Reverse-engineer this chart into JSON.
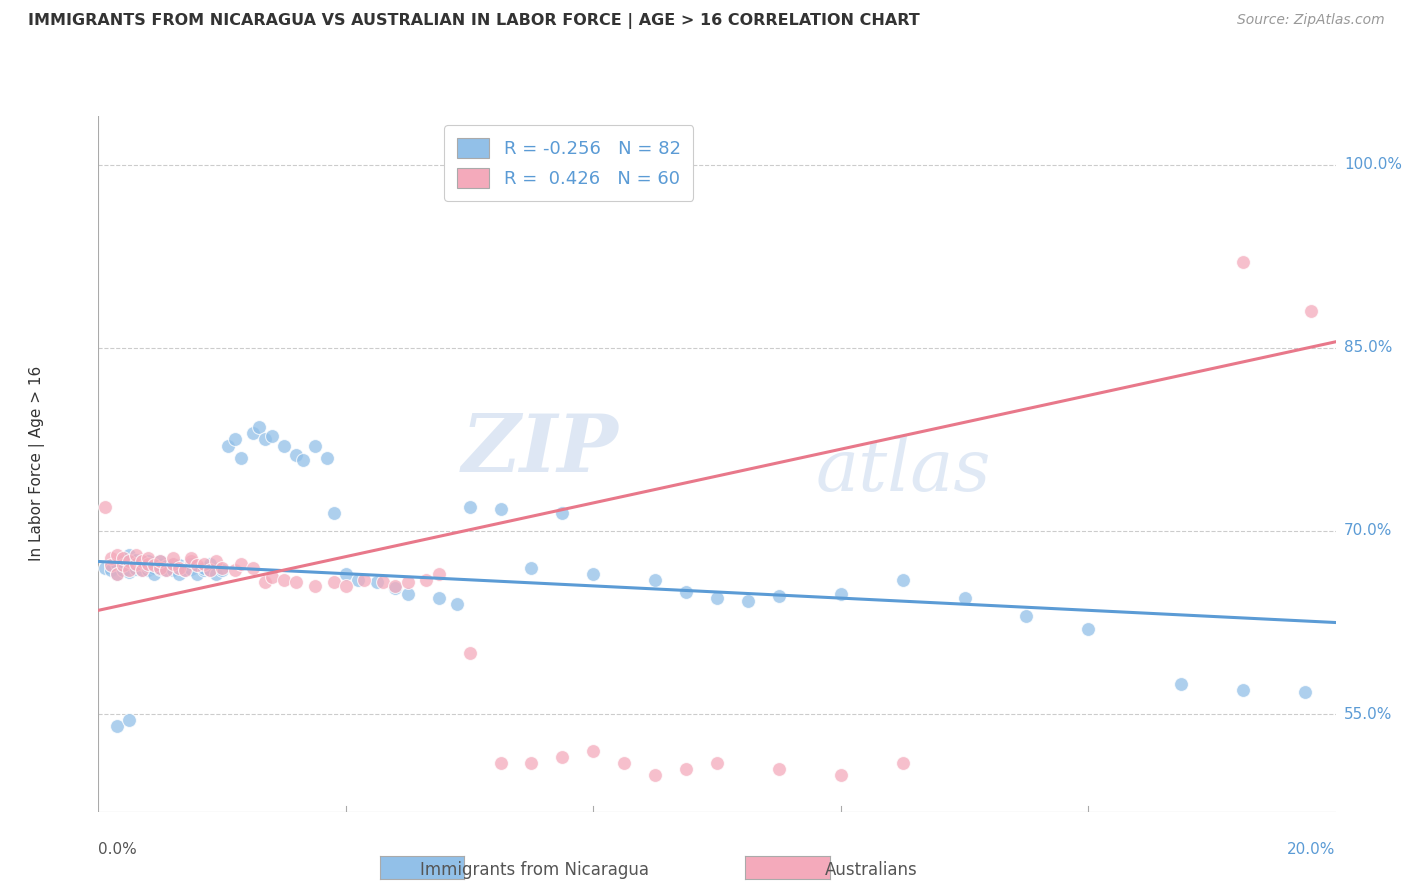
{
  "title": "IMMIGRANTS FROM NICARAGUA VS AUSTRALIAN IN LABOR FORCE | AGE > 16 CORRELATION CHART",
  "source_text": "Source: ZipAtlas.com",
  "ylabel": "In Labor Force | Age > 16",
  "yticks_labels": [
    "55.0%",
    "70.0%",
    "85.0%",
    "100.0%"
  ],
  "ytick_vals": [
    0.55,
    0.7,
    0.85,
    1.0
  ],
  "xmin": 0.0,
  "xmax": 0.2,
  "ymin": 0.47,
  "ymax": 1.04,
  "blue_color": "#92C0E8",
  "pink_color": "#F4AABB",
  "blue_line_color": "#5B9BD5",
  "pink_line_color": "#E8788A",
  "legend_R1": "R = -0.256",
  "legend_N1": "N = 82",
  "legend_R2": "R =  0.426",
  "legend_N2": "N = 60",
  "watermark_zip": "ZIP",
  "watermark_atlas": "atlas",
  "grid_color": "#CCCCCC",
  "blue_trend_x0": 0.0,
  "blue_trend_y0": 0.675,
  "blue_trend_x1": 0.2,
  "blue_trend_y1": 0.625,
  "pink_trend_x0": 0.0,
  "pink_trend_y0": 0.635,
  "pink_trend_x1": 0.2,
  "pink_trend_y1": 0.855,
  "blue_scatter_x": [
    0.001,
    0.002,
    0.002,
    0.003,
    0.003,
    0.004,
    0.004,
    0.004,
    0.005,
    0.005,
    0.005,
    0.006,
    0.006,
    0.006,
    0.007,
    0.007,
    0.007,
    0.008,
    0.008,
    0.008,
    0.009,
    0.009,
    0.01,
    0.01,
    0.01,
    0.011,
    0.011,
    0.012,
    0.012,
    0.013,
    0.013,
    0.014,
    0.014,
    0.015,
    0.015,
    0.016,
    0.017,
    0.017,
    0.018,
    0.018,
    0.019,
    0.02,
    0.021,
    0.022,
    0.023,
    0.025,
    0.026,
    0.027,
    0.028,
    0.03,
    0.032,
    0.033,
    0.035,
    0.037,
    0.038,
    0.04,
    0.042,
    0.045,
    0.048,
    0.05,
    0.055,
    0.058,
    0.06,
    0.065,
    0.07,
    0.075,
    0.08,
    0.09,
    0.095,
    0.1,
    0.105,
    0.11,
    0.12,
    0.13,
    0.14,
    0.15,
    0.16,
    0.175,
    0.185,
    0.195,
    0.003,
    0.005
  ],
  "blue_scatter_y": [
    0.67,
    0.672,
    0.668,
    0.673,
    0.665,
    0.671,
    0.675,
    0.668,
    0.672,
    0.666,
    0.68,
    0.674,
    0.669,
    0.676,
    0.671,
    0.668,
    0.673,
    0.675,
    0.668,
    0.671,
    0.67,
    0.665,
    0.672,
    0.669,
    0.675,
    0.671,
    0.668,
    0.673,
    0.668,
    0.672,
    0.665,
    0.67,
    0.668,
    0.673,
    0.669,
    0.665,
    0.668,
    0.67,
    0.673,
    0.668,
    0.665,
    0.668,
    0.77,
    0.775,
    0.76,
    0.78,
    0.785,
    0.775,
    0.778,
    0.77,
    0.762,
    0.758,
    0.77,
    0.76,
    0.715,
    0.665,
    0.66,
    0.658,
    0.653,
    0.648,
    0.645,
    0.64,
    0.72,
    0.718,
    0.67,
    0.715,
    0.665,
    0.66,
    0.65,
    0.645,
    0.643,
    0.647,
    0.648,
    0.66,
    0.645,
    0.63,
    0.62,
    0.575,
    0.57,
    0.568,
    0.54,
    0.545
  ],
  "pink_scatter_x": [
    0.001,
    0.002,
    0.002,
    0.003,
    0.003,
    0.004,
    0.004,
    0.005,
    0.005,
    0.006,
    0.006,
    0.007,
    0.007,
    0.008,
    0.008,
    0.009,
    0.01,
    0.01,
    0.011,
    0.012,
    0.012,
    0.013,
    0.014,
    0.015,
    0.015,
    0.016,
    0.017,
    0.018,
    0.019,
    0.02,
    0.022,
    0.023,
    0.025,
    0.027,
    0.028,
    0.03,
    0.032,
    0.035,
    0.038,
    0.04,
    0.043,
    0.046,
    0.048,
    0.05,
    0.053,
    0.055,
    0.06,
    0.065,
    0.07,
    0.075,
    0.08,
    0.085,
    0.09,
    0.095,
    0.1,
    0.11,
    0.12,
    0.13,
    0.185,
    0.196
  ],
  "pink_scatter_y": [
    0.72,
    0.678,
    0.672,
    0.68,
    0.665,
    0.672,
    0.678,
    0.675,
    0.668,
    0.673,
    0.68,
    0.675,
    0.668,
    0.673,
    0.678,
    0.672,
    0.67,
    0.675,
    0.668,
    0.673,
    0.678,
    0.67,
    0.668,
    0.675,
    0.678,
    0.672,
    0.673,
    0.668,
    0.675,
    0.67,
    0.668,
    0.673,
    0.67,
    0.658,
    0.662,
    0.66,
    0.658,
    0.655,
    0.658,
    0.655,
    0.66,
    0.658,
    0.655,
    0.658,
    0.66,
    0.665,
    0.6,
    0.51,
    0.51,
    0.515,
    0.52,
    0.51,
    0.5,
    0.505,
    0.51,
    0.505,
    0.5,
    0.51,
    0.92,
    0.88
  ]
}
